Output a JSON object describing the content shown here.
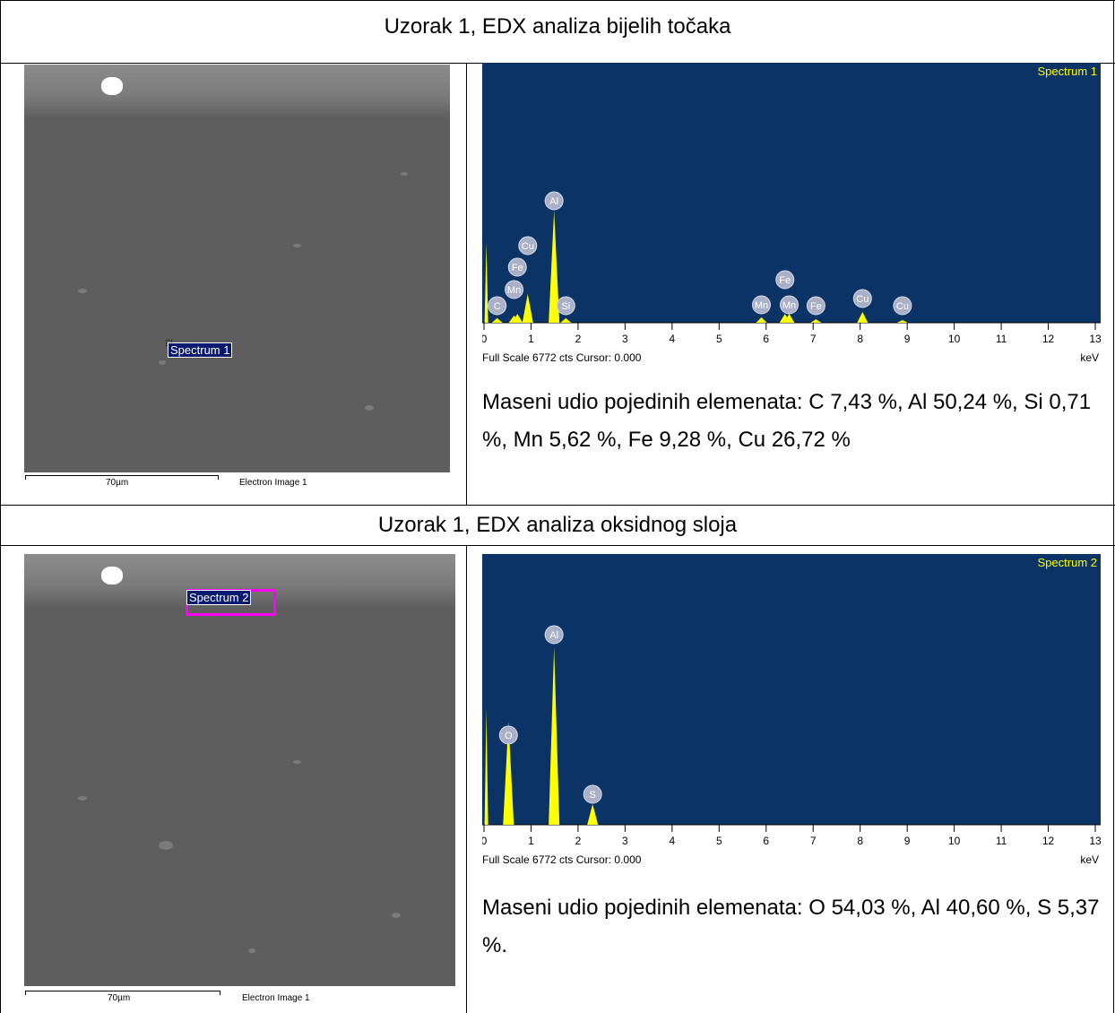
{
  "sections": [
    {
      "title": "Uzorak 1, EDX analiza bijelih točaka",
      "electron_image": {
        "spectrum_label": "Spectrum 1",
        "scale_bar": "70µm",
        "caption": "Electron Image 1"
      },
      "spectrum": {
        "type": "spectrum",
        "title": "Spectrum 1",
        "x_unit": "keV",
        "footer": "Full Scale 6772 cts Cursor: 0.000",
        "xlim": [
          0,
          13
        ],
        "ylim": [
          0,
          6772
        ],
        "xticks": [
          0,
          1,
          2,
          3,
          4,
          5,
          6,
          7,
          8,
          9,
          10,
          11,
          12,
          13
        ],
        "peaks": [
          {
            "element": null,
            "kev": 0.05,
            "counts": 2100
          },
          {
            "element": "C",
            "kev": 0.28,
            "counts": 120
          },
          {
            "element": "Mn",
            "kev": 0.64,
            "counts": 190
          },
          {
            "element": "Fe",
            "kev": 0.71,
            "counts": 230
          },
          {
            "element": "Cu",
            "kev": 0.93,
            "counts": 750
          },
          {
            "element": "Al",
            "kev": 1.49,
            "counts": 2920
          },
          {
            "element": "Si",
            "kev": 1.74,
            "counts": 120
          },
          {
            "element": "Mn",
            "kev": 5.9,
            "counts": 140
          },
          {
            "element": "Fe",
            "kev": 6.4,
            "counts": 230
          },
          {
            "element": "Mn",
            "kev": 6.49,
            "counts": 230
          },
          {
            "element": "Fe",
            "kev": 7.06,
            "counts": 90
          },
          {
            "element": "Cu",
            "kev": 8.05,
            "counts": 280
          },
          {
            "element": "Cu",
            "kev": 8.9,
            "counts": 70
          }
        ]
      },
      "description": "Maseni udio pojedinih elemenata: C 7,43 %, Al 50,24 %, Si 0,71 %, Mn 5,62 %, Fe 9,28 %, Cu 26,72 %"
    },
    {
      "title": "Uzorak 1, EDX analiza oksidnog sloja",
      "electron_image": {
        "spectrum_label": "Spectrum 2",
        "scale_bar": "70µm",
        "caption": "Electron Image 1"
      },
      "spectrum": {
        "type": "spectrum",
        "title": "Spectrum 2",
        "x_unit": "keV",
        "footer": "Full Scale 6772 cts Cursor: 0.000",
        "xlim": [
          0,
          13
        ],
        "ylim": [
          0,
          6772
        ],
        "xticks": [
          0,
          1,
          2,
          3,
          4,
          5,
          6,
          7,
          8,
          9,
          10,
          11,
          12,
          13
        ],
        "peaks": [
          {
            "element": null,
            "kev": 0.05,
            "counts": 2910
          },
          {
            "element": "O",
            "kev": 0.52,
            "counts": 2580
          },
          {
            "element": "Al",
            "kev": 1.49,
            "counts": 4440
          },
          {
            "element": "S",
            "kev": 2.31,
            "counts": 515
          }
        ]
      },
      "description": "Maseni udio pojedinih elemenata: O 54,03 %, Al 40,60 %, S 5,37 %."
    }
  ]
}
